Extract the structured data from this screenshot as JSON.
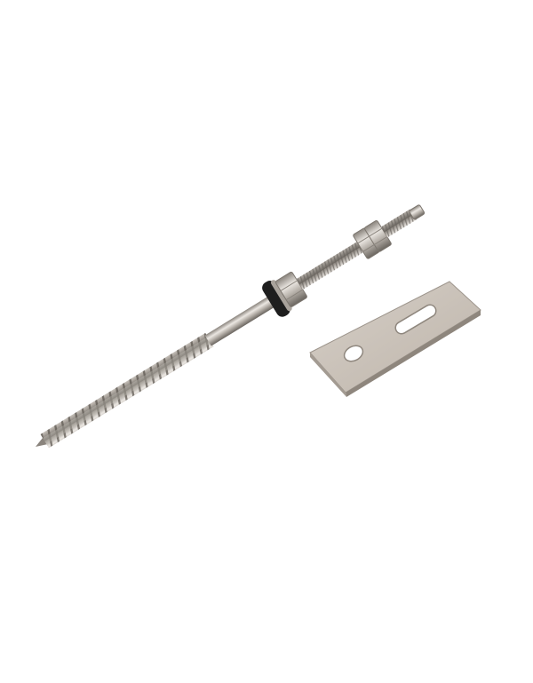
{
  "colors": {
    "background": "#ffffff",
    "steel_light": "#d8d4cf",
    "steel_mid": "#b5afa8",
    "steel_dark": "#7d7770",
    "rubber_washer": "#1e1e1e",
    "plate": "#c9c1b8"
  }
}
